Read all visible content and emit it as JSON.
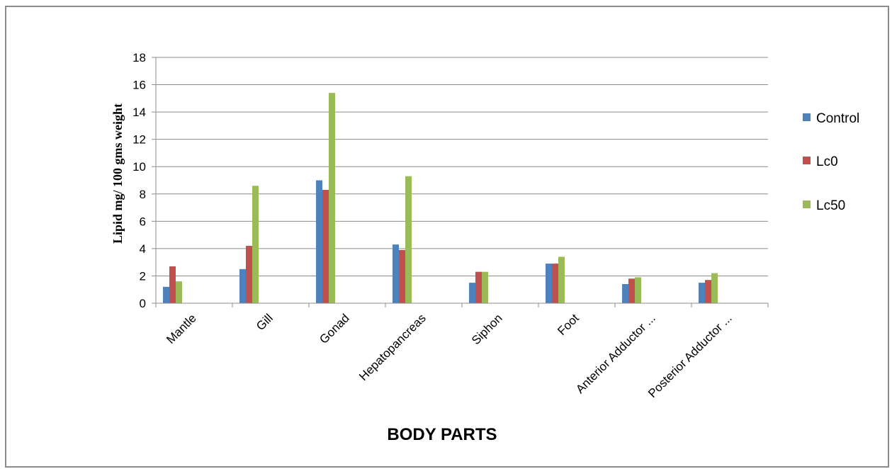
{
  "chart_data": {
    "type": "bar",
    "categories": [
      "Mantle",
      "Gill",
      "Gonad",
      "Hepatopancreas",
      "Siphon",
      "Foot",
      "Anterior Adductor ...",
      "Posterior Adductor ..."
    ],
    "series": [
      {
        "name": "Control",
        "color": "#4f81bd",
        "values": [
          1.2,
          2.5,
          9.0,
          4.3,
          1.5,
          2.9,
          1.4,
          1.5
        ]
      },
      {
        "name": "Lc0",
        "color": "#c0504d",
        "values": [
          2.7,
          4.2,
          8.3,
          3.9,
          2.3,
          2.9,
          1.8,
          1.7
        ]
      },
      {
        "name": "Lc50",
        "color": "#9bbb59",
        "values": [
          1.6,
          8.6,
          15.4,
          9.3,
          2.3,
          3.4,
          1.9,
          2.2
        ]
      }
    ],
    "xlabel": "BODY PARTS",
    "ylabel": "Lipid mg/ 100 gms weight",
    "ylim": [
      0,
      18
    ],
    "yticks": [
      0,
      2,
      4,
      6,
      8,
      10,
      12,
      14,
      16,
      18
    ],
    "grid": true,
    "legend_position": "right"
  }
}
